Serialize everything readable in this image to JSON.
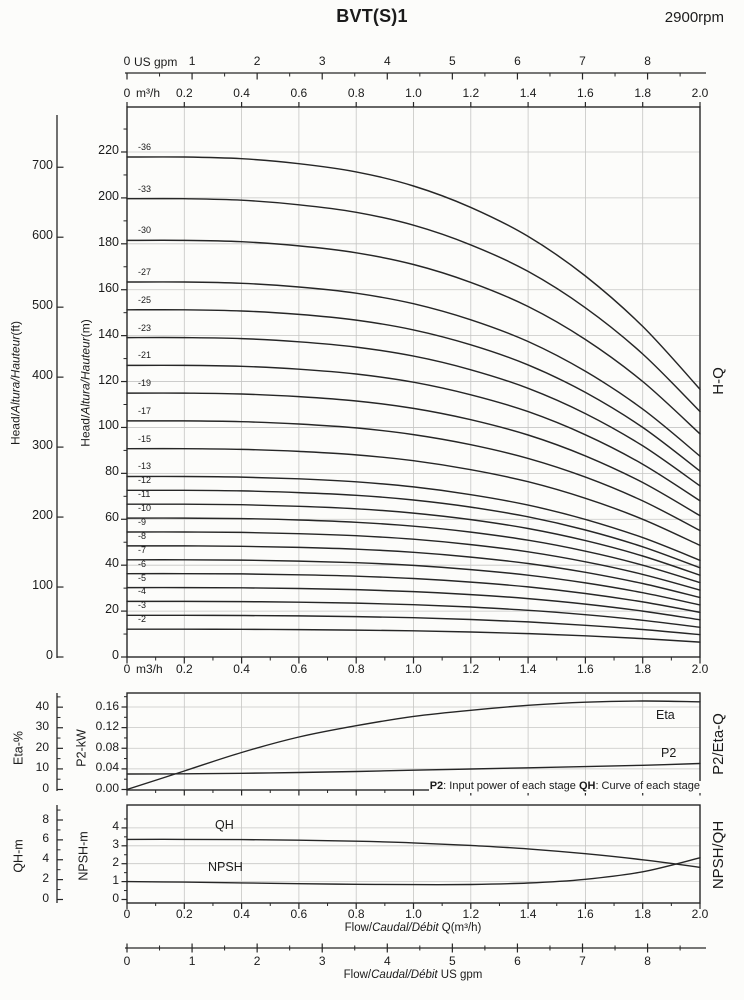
{
  "page": {
    "title": "BVT(S)1",
    "rpm": "2900rpm"
  },
  "colors": {
    "line": "#262626",
    "grid": "#c6c6c4",
    "text": "#1b1b1b",
    "bg": "#fcfcfa"
  },
  "labels": {
    "head_ft": {
      "p1": "Head/",
      "i": "Altura/Hauteur",
      "p2": "(ft)"
    },
    "head_m": {
      "p1": "Head/",
      "i": "Altura/Hauteur",
      "p2": "(m)"
    },
    "eta_axis": "Eta-%",
    "p2_axis": "P2-kW",
    "qh_axis": "QH-m",
    "npsh_axis": "NPSH-m",
    "right_hq": "H-Q",
    "right_mid": "P2/Eta-Q",
    "right_bot": "NPSH/QH",
    "us_gpm": "US gpm",
    "m3h_sup": "m³/h",
    "m3h_plain": "m3/h",
    "eta_curve": "Eta",
    "p2_curve": "P2",
    "qh_curve": "QH",
    "npsh_curve": "NPSH",
    "note": {
      "b1": "P2",
      "t1": ": Input power of each stage ",
      "b2": "QH",
      "t2": ": Curve of each stage"
    },
    "flow_m3h": {
      "p1": "Flow/",
      "i": "Caudal/Débit",
      "p2": " Q(m³/h)"
    },
    "flow_gpm": {
      "p1": "Flow/",
      "i": "Caudal/Débit",
      "p2": "  US gpm"
    }
  },
  "chart_data": [
    {
      "type": "line",
      "title": "H-Q",
      "x_unit": "m3/h",
      "x_range": [
        0,
        2.0
      ],
      "x_ticks_m3h": [
        "0",
        "0.2",
        "0.4",
        "0.6",
        "0.8",
        "1.0",
        "1.2",
        "1.4",
        "1.6",
        "1.8",
        "2.0"
      ],
      "x_ticks_gpm": [
        "0",
        "1",
        "2",
        "3",
        "4",
        "5",
        "6",
        "7",
        "8"
      ],
      "gpm_to_m3h": 0.227125,
      "y_unit_left_outer": "ft",
      "y_ticks_ft": [
        0,
        100,
        200,
        300,
        400,
        500,
        600,
        700
      ],
      "y_unit_left_inner": "m",
      "y_ticks_m": [
        0,
        20,
        40,
        60,
        80,
        100,
        120,
        140,
        160,
        180,
        200,
        220
      ],
      "grid": true,
      "stage_counts": [
        36,
        33,
        30,
        27,
        25,
        23,
        21,
        19,
        17,
        15,
        13,
        12,
        11,
        10,
        9,
        8,
        7,
        6,
        5,
        4,
        3,
        2
      ],
      "stage_labels": [
        "-36",
        "-33",
        "-30",
        "-27",
        "-25",
        "-23",
        "-21",
        "-19",
        "-17",
        "-15",
        "-13",
        "-12",
        "-11",
        "-10",
        "-9",
        "-8",
        "-7",
        "-6",
        "-5",
        "-4",
        "-3",
        "-2"
      ],
      "per_stage_head_curve": {
        "q_m3h": [
          0,
          0.2,
          0.4,
          0.6,
          0.8,
          1.0,
          1.2,
          1.4,
          1.6,
          1.8,
          2.0
        ],
        "h_m": [
          6.05,
          6.05,
          6.03,
          5.97,
          5.87,
          5.7,
          5.44,
          5.09,
          4.61,
          4.0,
          3.24
        ]
      }
    },
    {
      "type": "line",
      "title": "P2/Eta-Q",
      "x_range": [
        0,
        2.0
      ],
      "eta_ticks_pct": [
        0,
        10,
        20,
        30,
        40
      ],
      "p2_ticks_kw": [
        "0.00",
        "0.04",
        "0.08",
        "0.12",
        "0.16"
      ],
      "grid": true,
      "series": [
        {
          "name": "Eta",
          "unit": "%",
          "x": [
            0,
            0.2,
            0.4,
            0.6,
            0.8,
            1.0,
            1.2,
            1.4,
            1.6,
            1.8,
            2.0
          ],
          "y": [
            0,
            9,
            18,
            25.5,
            31,
            35.5,
            38.5,
            40.9,
            42.4,
            43.0,
            42.6
          ]
        },
        {
          "name": "P2",
          "unit": "kW",
          "x": [
            0,
            0.2,
            0.4,
            0.6,
            0.8,
            1.0,
            1.2,
            1.4,
            1.6,
            1.8,
            2.0
          ],
          "y": [
            0.03,
            0.0305,
            0.0315,
            0.033,
            0.035,
            0.0375,
            0.0398,
            0.042,
            0.0445,
            0.047,
            0.0505
          ]
        }
      ]
    },
    {
      "type": "line",
      "title": "NPSH/QH",
      "x_range": [
        0,
        2.0
      ],
      "qh_ticks_m": [
        0,
        2,
        4,
        6,
        8
      ],
      "npsh_ticks_m": [
        0,
        1,
        2,
        3,
        4
      ],
      "grid": true,
      "series": [
        {
          "name": "QH",
          "unit": "m",
          "scale": "QH-m",
          "x": [
            0,
            0.2,
            0.4,
            0.6,
            0.8,
            1.0,
            1.2,
            1.4,
            1.6,
            1.8,
            2.0
          ],
          "y": [
            6.05,
            6.05,
            6.03,
            5.97,
            5.87,
            5.7,
            5.44,
            5.09,
            4.61,
            4.0,
            3.24
          ]
        },
        {
          "name": "NPSH",
          "unit": "m",
          "scale": "NPSH-m",
          "x": [
            0,
            0.2,
            0.4,
            0.6,
            0.8,
            1.0,
            1.2,
            1.4,
            1.6,
            1.8,
            2.0
          ],
          "y": [
            1.0,
            0.97,
            0.93,
            0.88,
            0.85,
            0.83,
            0.84,
            0.92,
            1.13,
            1.55,
            2.33
          ]
        }
      ]
    }
  ]
}
